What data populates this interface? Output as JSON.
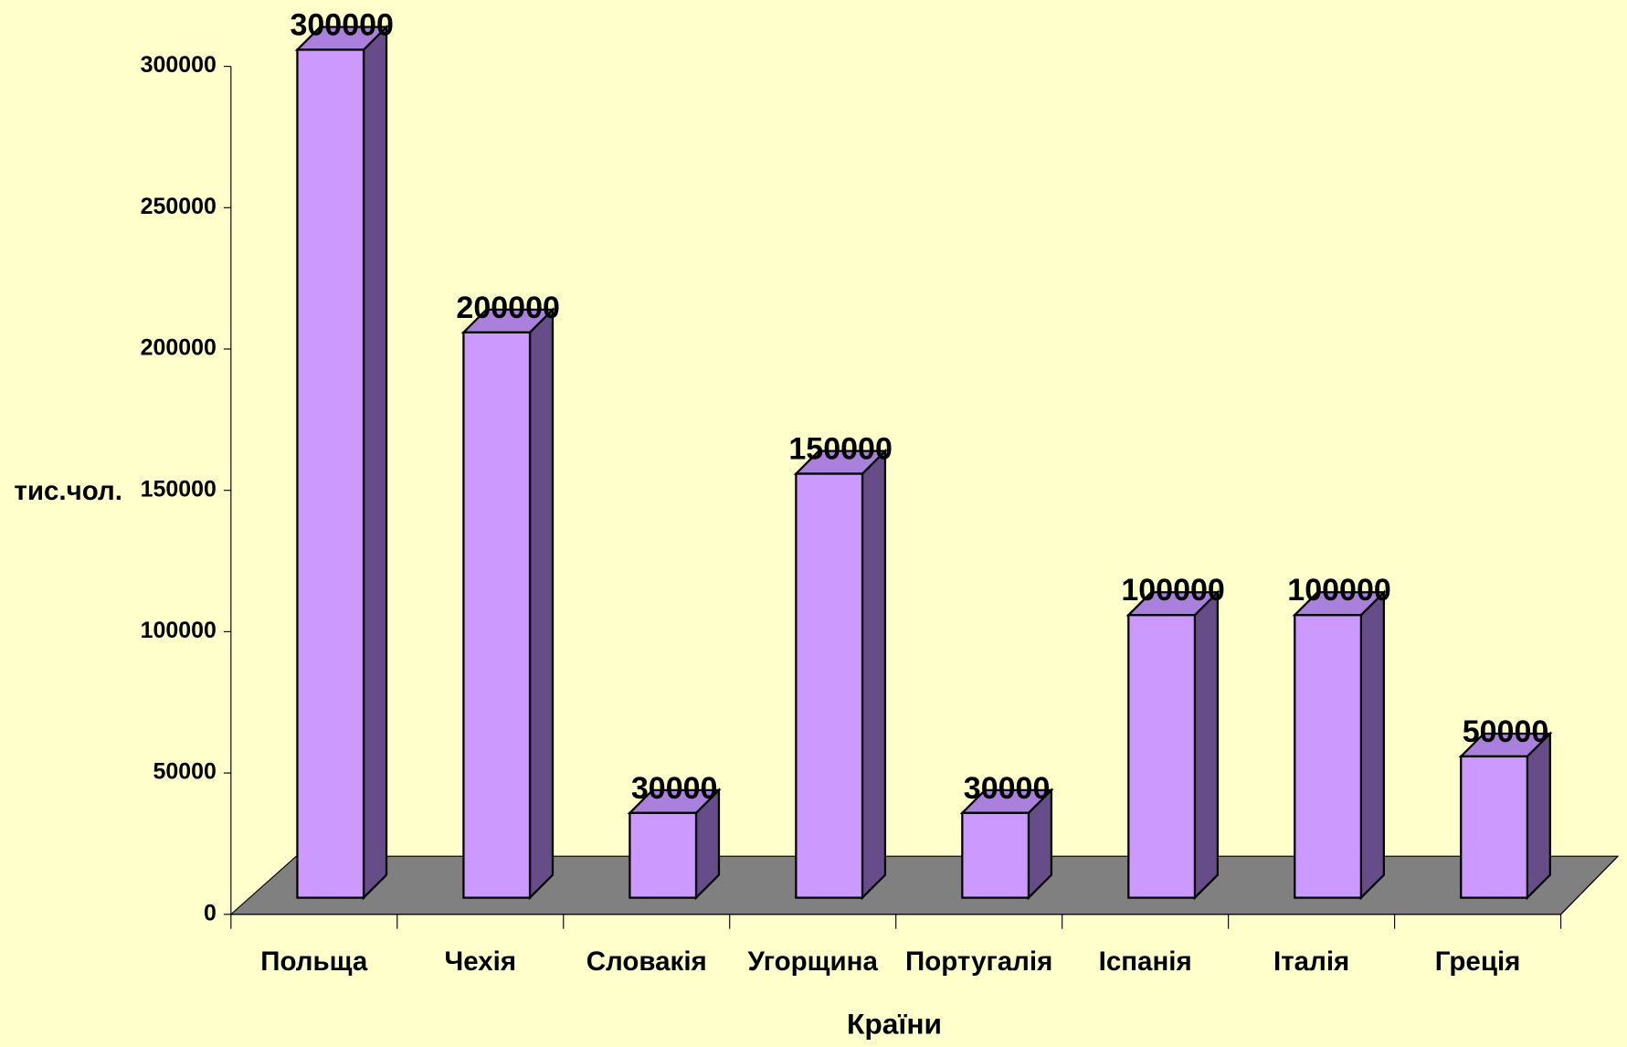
{
  "chart_data": {
    "type": "bar",
    "categories": [
      "Польща",
      "Чехія",
      "Словакія",
      "Угорщина",
      "Португалія",
      "Іспанія",
      "Італія",
      "Греція"
    ],
    "values": [
      300000,
      200000,
      30000,
      150000,
      30000,
      100000,
      100000,
      50000
    ],
    "color": "#cc99ff",
    "ylim": [
      0,
      300000
    ],
    "yticks": [
      0,
      50000,
      100000,
      150000,
      200000,
      250000,
      300000
    ],
    "xlabel": "Країни",
    "ylabel": "тис.чол."
  }
}
